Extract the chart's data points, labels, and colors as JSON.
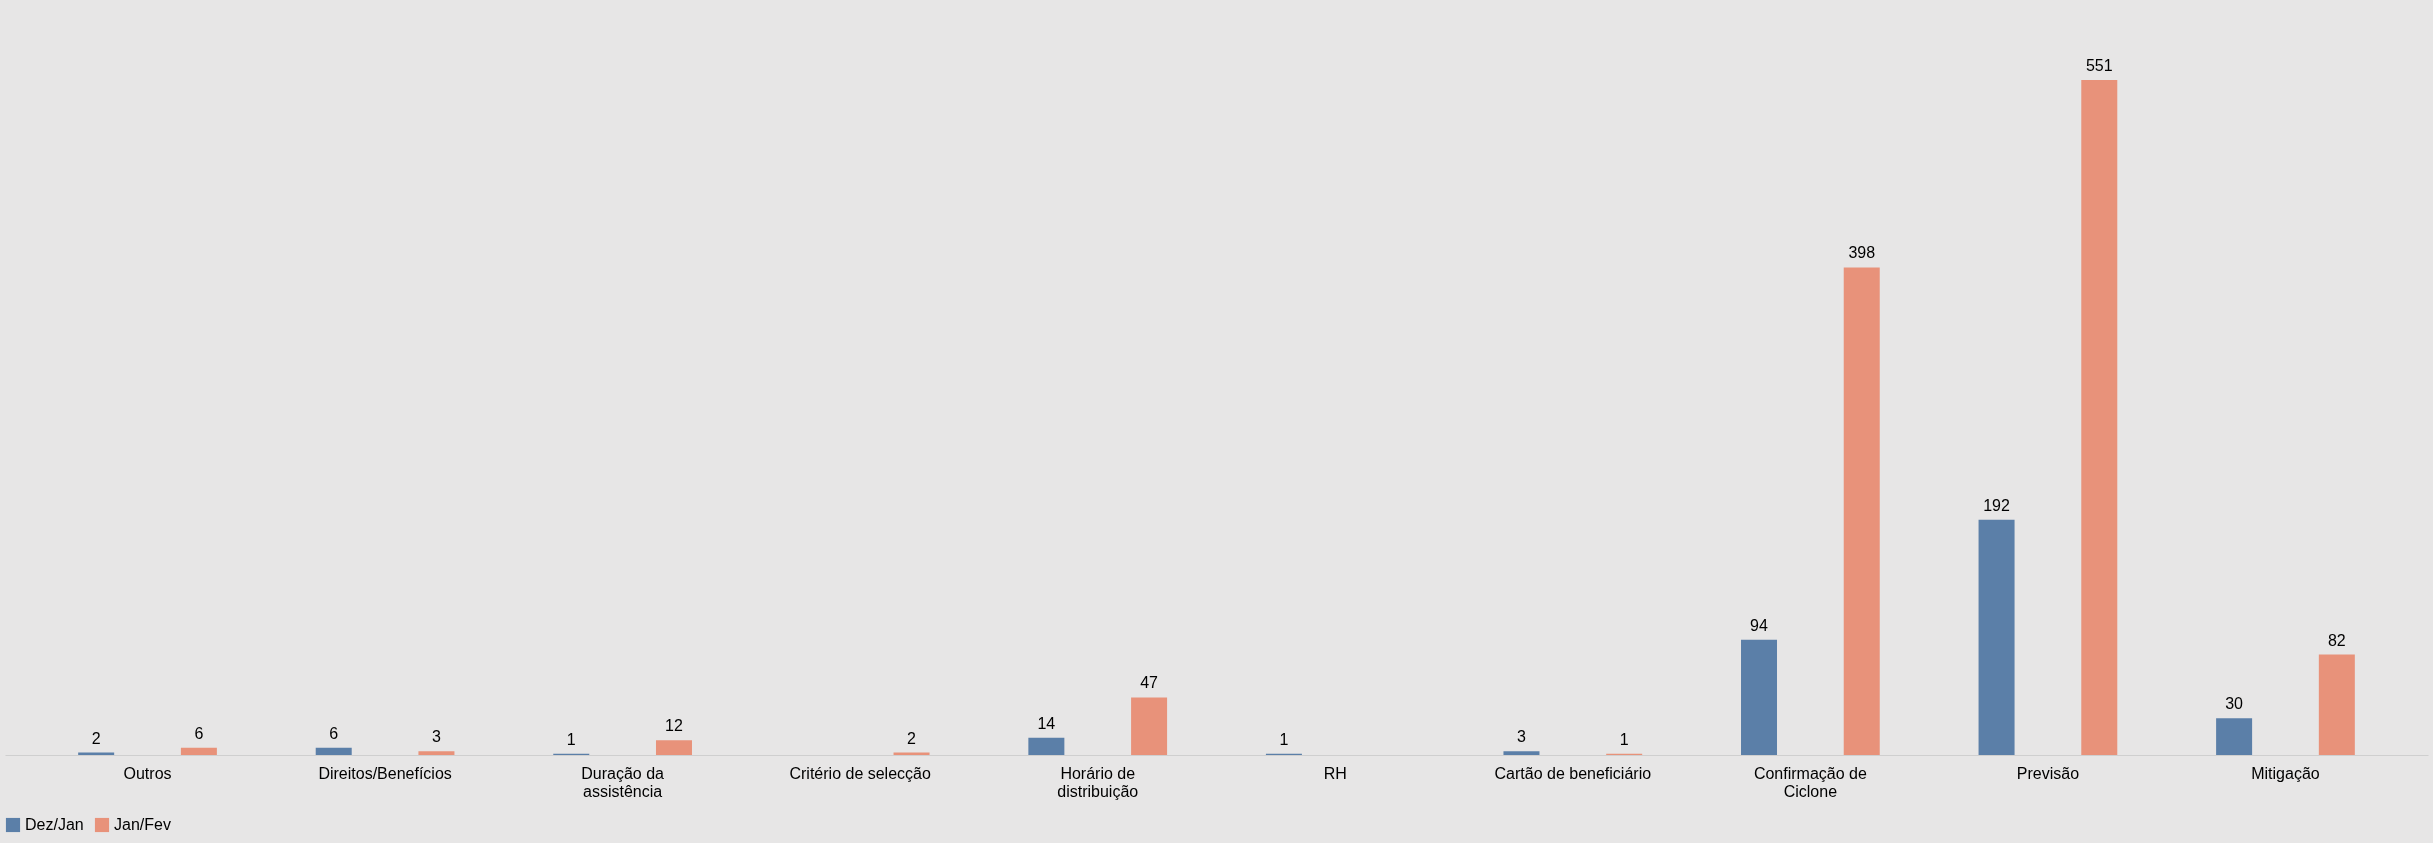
{
  "chart_data": {
    "type": "bar",
    "categories": [
      "Outros",
      "Direitos/Benefícios",
      "Duração da\nassistência",
      "Critério de selecção",
      "Horário de\ndistribuição",
      "RH",
      "Cartão de beneficiário",
      "Confirmação de\nCiclone",
      "Previsão",
      "Mitigação"
    ],
    "series": [
      {
        "name": "Dez/Jan",
        "color": "#5b7fa8",
        "values": [
          2,
          6,
          1,
          null,
          14,
          1,
          3,
          94,
          192,
          30
        ]
      },
      {
        "name": "Jan/Fev",
        "color": "#e8927a",
        "values": [
          6,
          3,
          12,
          2,
          47,
          null,
          1,
          398,
          551,
          82
        ]
      }
    ],
    "data_labels": true,
    "legend": "bottom",
    "grid": false
  }
}
